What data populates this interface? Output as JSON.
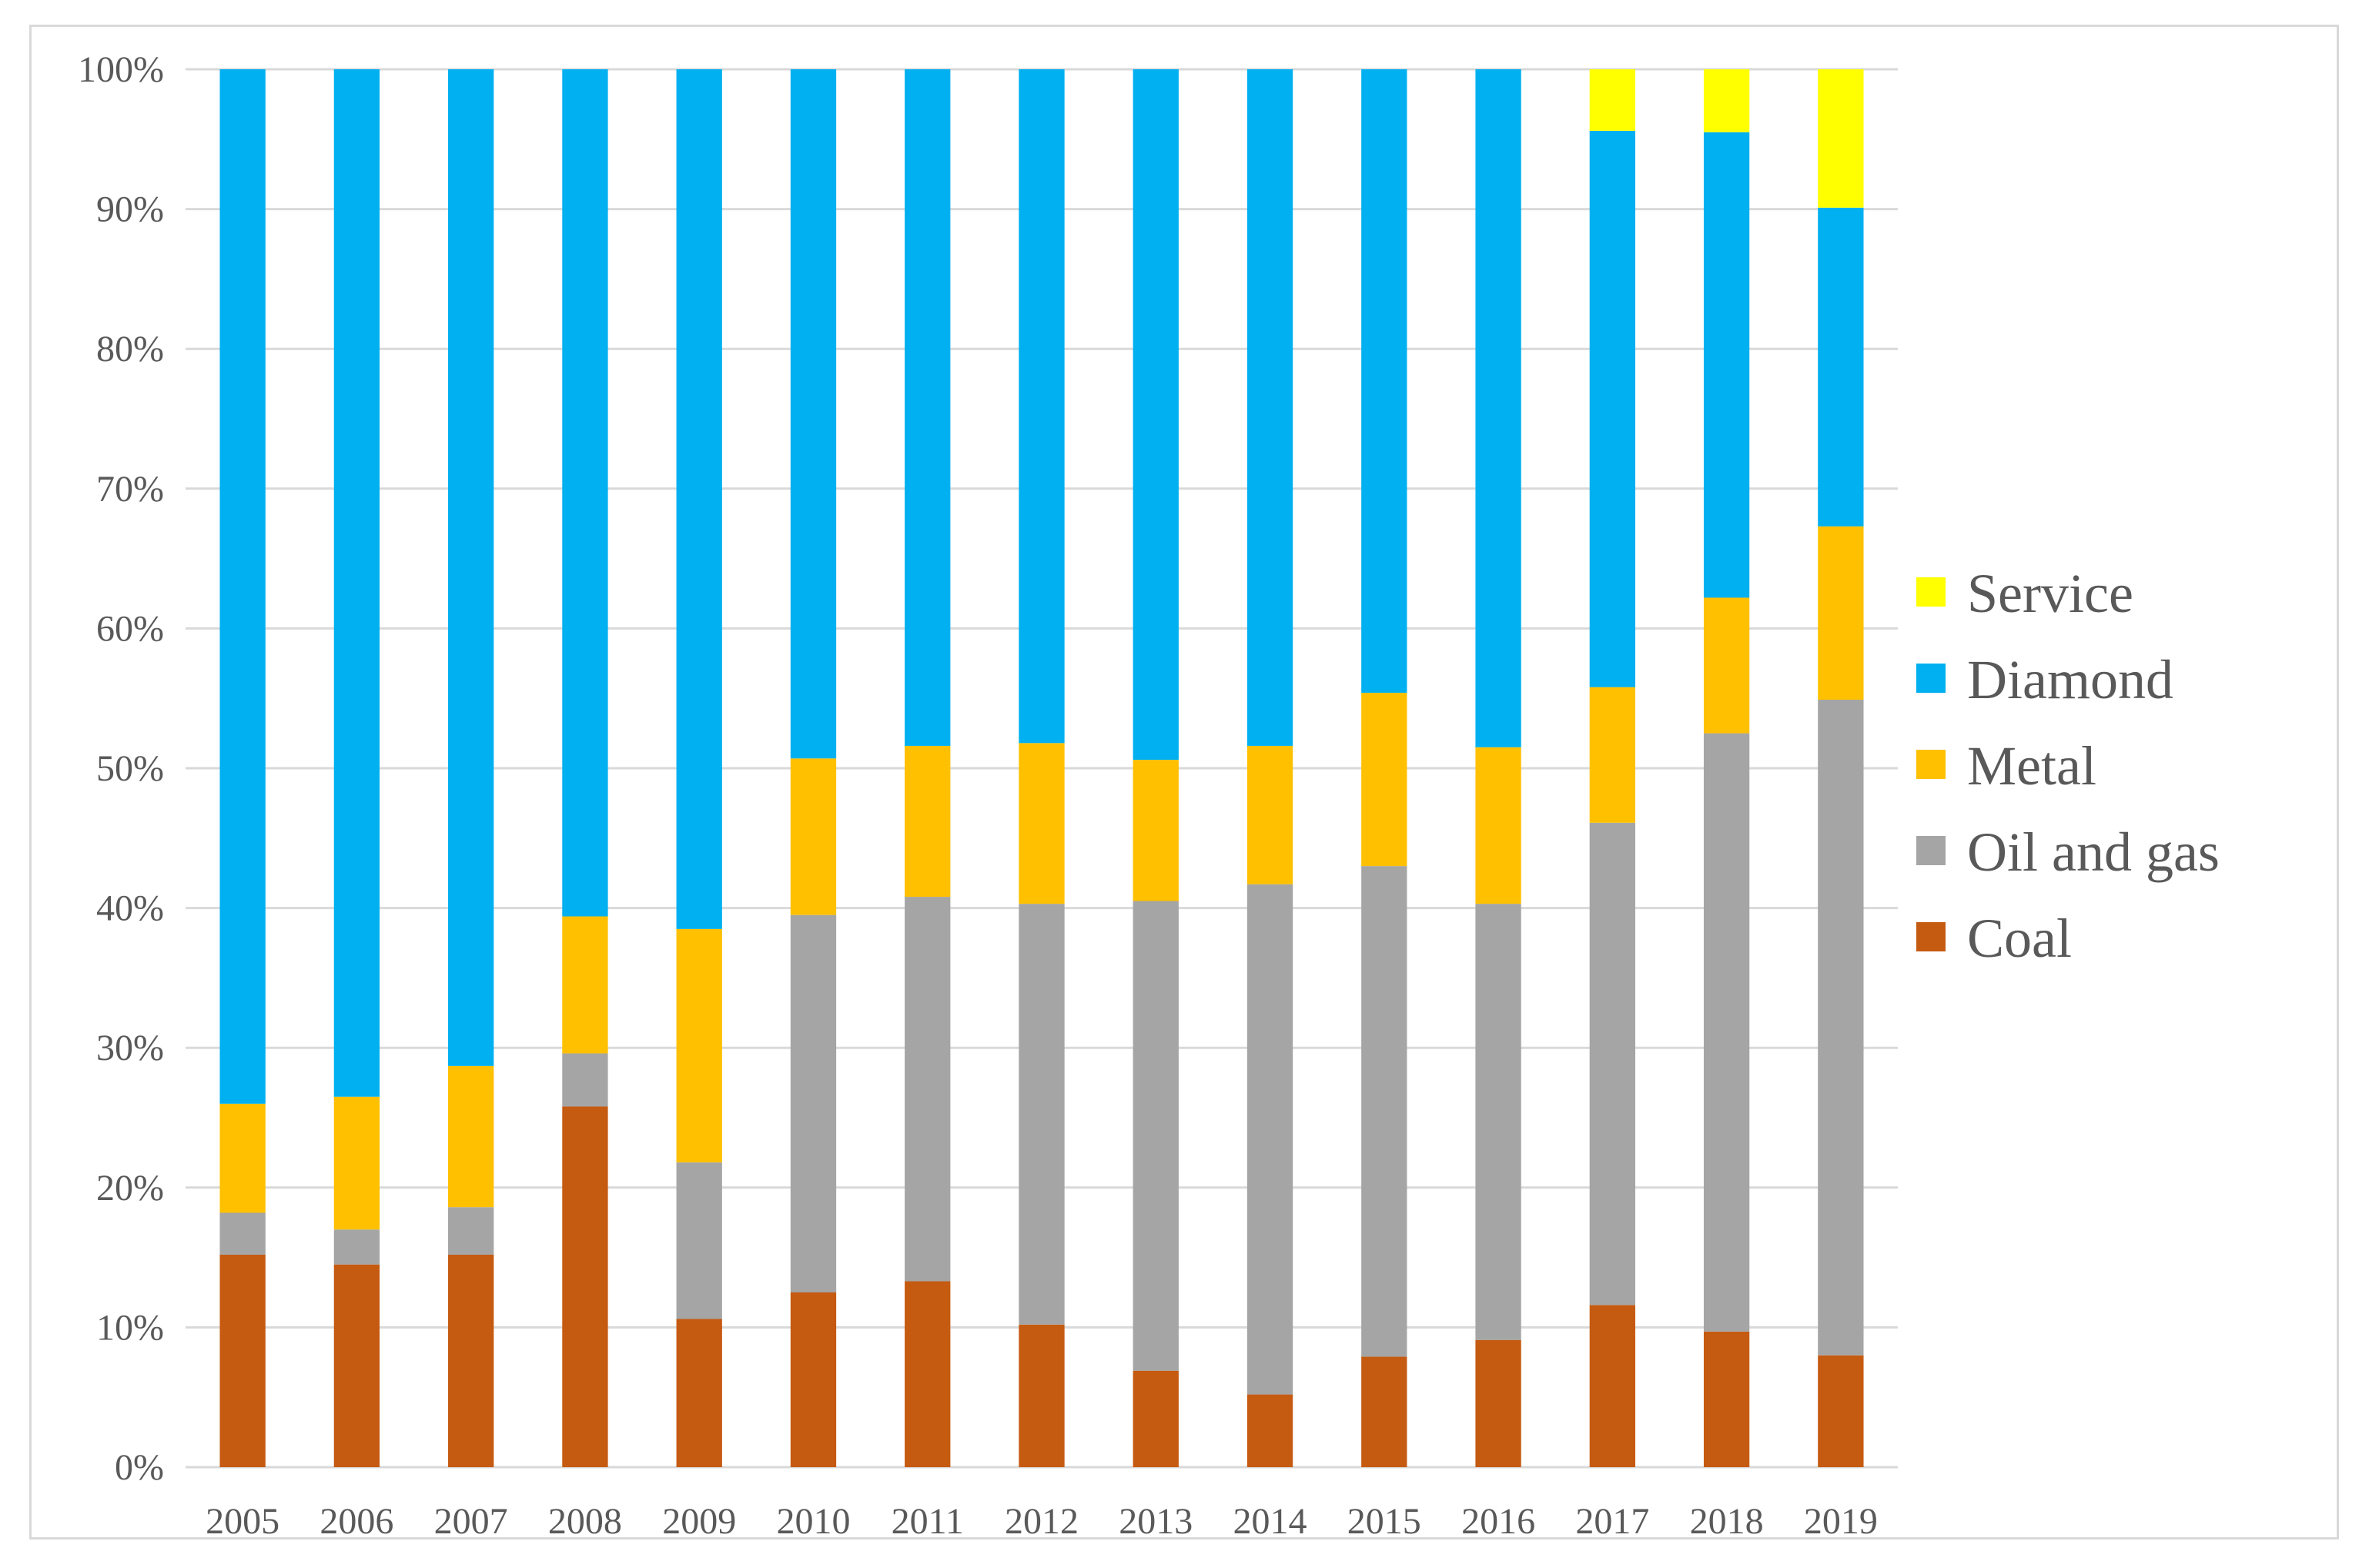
{
  "chart_data": {
    "type": "bar",
    "stacked": true,
    "normalized": true,
    "categories": [
      "2005",
      "2006",
      "2007",
      "2008",
      "2009",
      "2010",
      "2011",
      "2012",
      "2013",
      "2014",
      "2015",
      "2016",
      "2017",
      "2018",
      "2019"
    ],
    "series": [
      {
        "name": "Coal",
        "color": "#C55A11",
        "values": [
          15.2,
          14.5,
          15.2,
          25.8,
          10.6,
          12.5,
          13.3,
          10.2,
          6.9,
          5.2,
          7.9,
          9.1,
          11.6,
          9.7,
          8.0
        ]
      },
      {
        "name": "Oil and gas",
        "color": "#A5A5A5",
        "values": [
          3.0,
          2.5,
          3.4,
          3.8,
          11.2,
          27.0,
          27.5,
          30.1,
          33.6,
          36.5,
          35.1,
          31.2,
          34.5,
          42.8,
          46.9
        ]
      },
      {
        "name": "Metal",
        "color": "#FFC000",
        "values": [
          7.8,
          9.5,
          10.1,
          9.8,
          16.7,
          11.2,
          10.8,
          11.5,
          10.1,
          9.9,
          12.4,
          11.2,
          9.7,
          9.7,
          12.4
        ]
      },
      {
        "name": "Diamond",
        "color": "#00B0F0",
        "values": [
          74.0,
          73.5,
          71.3,
          60.6,
          61.5,
          49.3,
          48.4,
          48.2,
          49.4,
          48.4,
          44.6,
          48.5,
          39.8,
          33.3,
          22.8
        ]
      },
      {
        "name": "Service",
        "color": "#FFFF00",
        "values": [
          0,
          0,
          0,
          0,
          0,
          0,
          0,
          0,
          0,
          0,
          0,
          0,
          4.4,
          4.5,
          9.9
        ]
      }
    ],
    "yticks": [
      "0%",
      "10%",
      "20%",
      "30%",
      "40%",
      "50%",
      "60%",
      "70%",
      "80%",
      "90%",
      "100%"
    ],
    "ylim": [
      0,
      100
    ],
    "grid": true,
    "legend": {
      "position": "right",
      "order": [
        "Service",
        "Diamond",
        "Metal",
        "Oil and gas",
        "Coal"
      ]
    },
    "title": "",
    "xlabel": "",
    "ylabel": ""
  },
  "colors": {
    "gridline": "#D9D9D9",
    "axis": "#D9D9D9",
    "text": "#595959",
    "frame": "#D9D9D9"
  }
}
